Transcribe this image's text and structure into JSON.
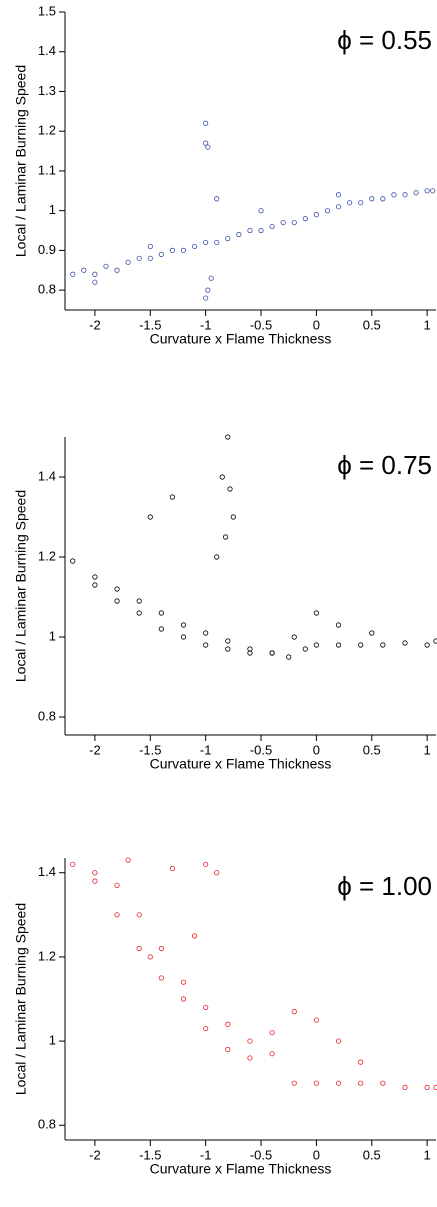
{
  "chart_data": [
    {
      "type": "scatter",
      "annotation": "ϕ = 0.55",
      "xlabel": "Curvature x Flame Thickness",
      "ylabel": "Local / Laminar Burning Speed",
      "color": "#3a4fa8",
      "x": [
        -2.2,
        -2.1,
        -2.0,
        -1.9,
        -1.8,
        -1.7,
        -1.6,
        -1.5,
        -1.4,
        -1.3,
        -1.2,
        -1.1,
        -1.0,
        -0.9,
        -0.8,
        -0.7,
        -0.6,
        -0.5,
        -0.4,
        -0.3,
        -0.2,
        -0.1,
        0,
        0.1,
        0.2,
        0.3,
        0.4,
        0.5,
        0.6,
        0.7,
        0.8,
        0.9,
        1.0,
        1.05,
        -1.0,
        -1.0,
        -0.98,
        -0.98,
        -1.0,
        -0.95,
        -0.9,
        -1.5,
        -2.0,
        -0.5,
        0.2
      ],
      "y": [
        0.84,
        0.85,
        0.84,
        0.86,
        0.85,
        0.87,
        0.88,
        0.88,
        0.89,
        0.9,
        0.9,
        0.91,
        0.92,
        0.92,
        0.93,
        0.94,
        0.95,
        0.95,
        0.96,
        0.97,
        0.97,
        0.98,
        0.99,
        1.0,
        1.01,
        1.02,
        1.02,
        1.03,
        1.03,
        1.04,
        1.04,
        1.045,
        1.05,
        1.05,
        1.22,
        1.17,
        1.16,
        0.8,
        0.78,
        0.83,
        1.03,
        0.91,
        0.82,
        1.0,
        1.04
      ],
      "xlim": [
        -2.27,
        1.08
      ],
      "xticks": [
        -2,
        -1.5,
        -1,
        -0.5,
        0,
        0.5,
        1
      ],
      "ylim": [
        0.75,
        1.5
      ],
      "yticks": [
        0.8,
        0.9,
        1,
        1.1,
        1.2,
        1.3,
        1.4,
        1.5
      ]
    },
    {
      "type": "scatter",
      "annotation": "ϕ = 0.75",
      "xlabel": "Curvature x Flame Thickness",
      "ylabel": "Local / Laminar Burning Speed",
      "color": "#000000",
      "x": [
        -2.2,
        -2.0,
        -1.8,
        -1.6,
        -1.4,
        -1.2,
        -1.0,
        -0.8,
        -0.6,
        -0.4,
        -0.25,
        -0.1,
        0,
        0.2,
        0.4,
        0.6,
        0.8,
        1.0,
        1.08,
        -2.0,
        -1.8,
        -1.6,
        -1.4,
        -1.2,
        -1.0,
        -0.8,
        -0.6,
        -0.4,
        -0.2,
        0,
        0.2,
        0.5,
        -0.8,
        -0.78,
        -0.85,
        -0.75,
        -1.5,
        -1.3,
        -0.9,
        -0.82
      ],
      "y": [
        1.19,
        1.15,
        1.12,
        1.09,
        1.06,
        1.03,
        1.01,
        0.99,
        0.97,
        0.96,
        0.95,
        0.97,
        0.98,
        0.98,
        0.98,
        0.98,
        0.985,
        0.98,
        0.99,
        1.13,
        1.09,
        1.06,
        1.02,
        1.0,
        0.98,
        0.97,
        0.96,
        0.96,
        1.0,
        1.06,
        1.03,
        1.01,
        1.5,
        1.37,
        1.4,
        1.3,
        1.3,
        1.35,
        1.2,
        1.25
      ],
      "xlim": [
        -2.27,
        1.08
      ],
      "xticks": [
        -2,
        -1.5,
        -1,
        -0.5,
        0,
        0.5,
        1
      ],
      "ylim": [
        0.755,
        1.5
      ],
      "yticks": [
        0.8,
        1,
        1.2,
        1.4
      ]
    },
    {
      "type": "scatter",
      "annotation": "ϕ = 1.00",
      "xlabel": "Curvature x Flame Thickness",
      "ylabel": "Local / Laminar Burning Speed",
      "color": "#e8202a",
      "x": [
        -2.2,
        -2.0,
        -1.8,
        -1.6,
        -1.4,
        -1.2,
        -1.0,
        -0.8,
        -0.6,
        -0.4,
        -0.2,
        0,
        0.2,
        0.4,
        0.6,
        0.8,
        1.0,
        1.08,
        -2.0,
        -1.8,
        -1.6,
        -1.4,
        -1.2,
        -1.0,
        -0.8,
        -0.6,
        -0.4,
        -0.2,
        0,
        0.2,
        0.4,
        -1.7,
        -1.3,
        -1.0,
        -0.9,
        -1.5,
        -1.1
      ],
      "y": [
        1.42,
        1.4,
        1.37,
        1.3,
        1.22,
        1.14,
        1.08,
        1.04,
        1.0,
        0.97,
        0.9,
        0.9,
        0.9,
        0.9,
        0.9,
        0.89,
        0.89,
        0.89,
        1.38,
        1.3,
        1.22,
        1.15,
        1.1,
        1.03,
        0.98,
        0.96,
        1.02,
        1.07,
        1.05,
        1.0,
        0.95,
        1.43,
        1.41,
        1.42,
        1.4,
        1.2,
        1.25
      ],
      "xlim": [
        -2.27,
        1.08
      ],
      "xticks": [
        -2,
        -1.5,
        -1,
        -0.5,
        0,
        0.5,
        1
      ],
      "ylim": [
        0.765,
        1.435
      ],
      "yticks": [
        0.8,
        1,
        1.2,
        1.4
      ]
    }
  ]
}
